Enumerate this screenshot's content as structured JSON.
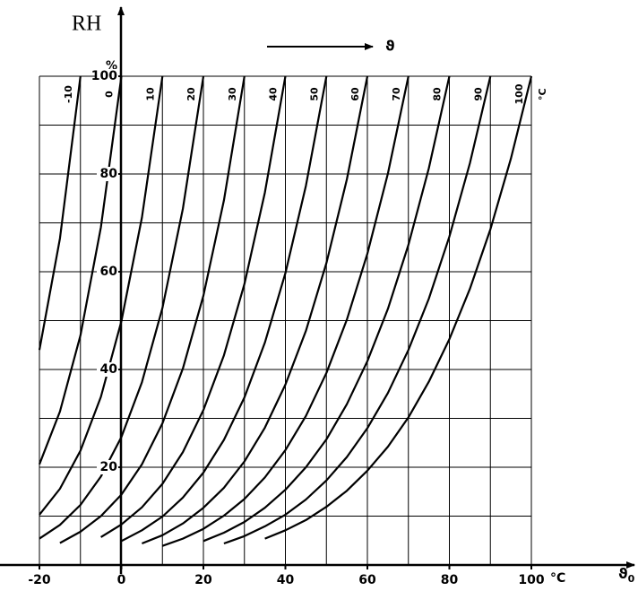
{
  "chart_data": {
    "type": "line",
    "y_title": "RH",
    "y_unit": "%",
    "arrow_label": "ϑ",
    "xlabel": {
      "symbol": "ϑ",
      "subscript": "0"
    },
    "x_unit": "°C",
    "curve_unit": "°C",
    "color": "#000000",
    "xlim": [
      -20,
      100
    ],
    "ylim": [
      0,
      100
    ],
    "xticks": [
      -20,
      0,
      20,
      40,
      60,
      80,
      100
    ],
    "yticks": [
      20,
      40,
      60,
      80,
      100
    ],
    "x_grid": [
      -20,
      -10,
      0,
      10,
      20,
      30,
      40,
      50,
      60,
      70,
      80,
      90,
      100
    ],
    "y_grid": [
      10,
      20,
      30,
      40,
      50,
      60,
      70,
      80,
      90,
      100
    ],
    "series": [
      {
        "name": "-10",
        "x": [
          -20,
          -15,
          -10
        ],
        "values": [
          44.0,
          66.8,
          100
        ]
      },
      {
        "name": "0",
        "x": [
          -20,
          -15,
          -10,
          -5,
          0
        ],
        "values": [
          20.6,
          31.4,
          47.0,
          69.1,
          100
        ]
      },
      {
        "name": "10",
        "x": [
          -20,
          -15,
          -10,
          -5,
          0,
          5,
          10
        ],
        "values": [
          10.3,
          15.6,
          23.4,
          34.4,
          49.9,
          71.1,
          100
        ]
      },
      {
        "name": "20",
        "x": [
          -20,
          -15,
          -10,
          -5,
          0,
          5,
          10,
          15,
          20
        ],
        "values": [
          5.4,
          8.2,
          12.3,
          18.1,
          26.2,
          37.4,
          52.6,
          72.9,
          100
        ]
      },
      {
        "name": "30",
        "x": [
          -15,
          -10,
          -5,
          0,
          5,
          10,
          15,
          20,
          25,
          30
        ],
        "values": [
          4.5,
          6.8,
          10.0,
          14.4,
          20.6,
          29.0,
          40.2,
          55.1,
          74.6,
          100
        ]
      },
      {
        "name": "40",
        "x": [
          -5,
          0,
          5,
          10,
          15,
          20,
          25,
          30,
          35,
          40
        ],
        "values": [
          5.7,
          8.3,
          11.8,
          16.6,
          23.1,
          31.7,
          42.9,
          57.5,
          76.2,
          100
        ]
      },
      {
        "name": "50",
        "x": [
          0,
          5,
          10,
          15,
          20,
          25,
          30,
          35,
          40,
          45,
          50
        ],
        "values": [
          4.9,
          7.1,
          9.9,
          13.8,
          18.9,
          25.6,
          34.3,
          45.5,
          59.7,
          77.6,
          100
        ]
      },
      {
        "name": "60",
        "x": [
          5,
          10,
          15,
          20,
          25,
          30,
          35,
          40,
          45,
          50,
          55,
          60
        ],
        "values": [
          4.4,
          6.1,
          8.5,
          11.7,
          15.8,
          21.2,
          28.1,
          36.9,
          47.9,
          61.8,
          78.9,
          100
        ]
      },
      {
        "name": "70",
        "x": [
          10,
          15,
          20,
          25,
          30,
          35,
          40,
          45,
          50,
          55,
          60,
          65,
          70
        ],
        "values": [
          3.9,
          5.4,
          7.4,
          10.1,
          13.5,
          17.9,
          23.5,
          30.5,
          39.3,
          50.2,
          63.7,
          80.1,
          100
        ]
      },
      {
        "name": "80",
        "x": [
          20,
          25,
          30,
          35,
          40,
          45,
          50,
          55,
          60,
          65,
          70,
          75,
          80
        ],
        "values": [
          4.9,
          6.6,
          8.8,
          11.7,
          15.4,
          20.0,
          25.7,
          32.9,
          41.7,
          52.4,
          65.5,
          81.2,
          100
        ]
      },
      {
        "name": "90",
        "x": [
          25,
          30,
          35,
          40,
          45,
          50,
          55,
          60,
          65,
          70,
          75,
          80,
          85,
          90
        ],
        "values": [
          4.4,
          5.9,
          7.9,
          10.3,
          13.4,
          17.3,
          22.1,
          28.0,
          35.2,
          44.0,
          54.5,
          67.2,
          82.2,
          100
        ]
      },
      {
        "name": "100",
        "x": [
          35,
          40,
          45,
          50,
          55,
          60,
          65,
          70,
          75,
          80,
          85,
          90,
          95,
          100
        ],
        "values": [
          5.4,
          7.1,
          9.2,
          11.9,
          15.2,
          19.3,
          24.2,
          30.2,
          37.5,
          46.2,
          56.5,
          68.7,
          83.1,
          100
        ]
      }
    ]
  }
}
